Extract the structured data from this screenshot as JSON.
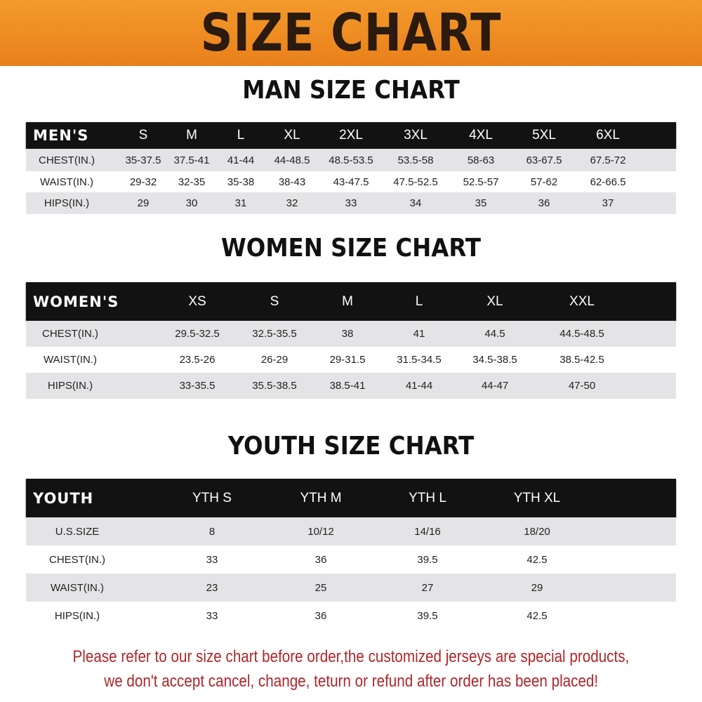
{
  "title": "SIZE CHART",
  "colors": {
    "banner": "#ef8a1f",
    "header_row": "#121212",
    "stripe": "#e4e4e6",
    "notice": "#b0262a"
  },
  "tables": [
    {
      "title": "MAN SIZE CHART",
      "header": [
        "MEN'S",
        "S",
        "M",
        "L",
        "XL",
        "2XL",
        "3XL",
        "4XL",
        "5XL",
        "6XL"
      ],
      "rows": [
        [
          "CHEST(IN.)",
          "35-37.5",
          "37.5-41",
          "41-44",
          "44-48.5",
          "48.5-53.5",
          "53.5-58",
          "58-63",
          "63-67.5",
          "67.5-72"
        ],
        [
          "WAIST(IN.)",
          "29-32",
          "32-35",
          "35-38",
          "38-43",
          "43-47.5",
          "47.5-52.5",
          "52.5-57",
          "57-62",
          "62-66.5"
        ],
        [
          "HIPS(IN.)",
          "29",
          "30",
          "31",
          "32",
          "33",
          "34",
          "35",
          "36",
          "37"
        ]
      ]
    },
    {
      "title": "WOMEN SIZE CHART",
      "header": [
        "WOMEN'S",
        "XS",
        "S",
        "M",
        "L",
        "XL",
        "XXL"
      ],
      "rows": [
        [
          "CHEST(IN.)",
          "29.5-32.5",
          "32.5-35.5",
          "38",
          "41",
          "44.5",
          "44.5-48.5"
        ],
        [
          "WAIST(IN.)",
          "23.5-26",
          "26-29",
          "29-31.5",
          "31.5-34.5",
          "34.5-38.5",
          "38.5-42.5"
        ],
        [
          "HIPS(IN.)",
          "33-35.5",
          "35.5-38.5",
          "38.5-41",
          "41-44",
          "44-47",
          "47-50"
        ]
      ]
    },
    {
      "title": "YOUTH SIZE CHART",
      "header": [
        "YOUTH",
        "YTH S",
        "YTH M",
        "YTH L",
        "YTH XL"
      ],
      "rows": [
        [
          "U.S.SIZE",
          "8",
          "10/12",
          "14/16",
          "18/20"
        ],
        [
          "CHEST(IN.)",
          "33",
          "36",
          "39.5",
          "42.5"
        ],
        [
          "WAIST(IN.)",
          "23",
          "25",
          "27",
          "29"
        ],
        [
          "HIPS(IN.)",
          "33",
          "36",
          "39.5",
          "42.5"
        ]
      ]
    }
  ],
  "notice": [
    "Please refer to our size chart before order,the customized jerseys are special products,",
    "we don't accept cancel, change, teturn or refund after order has been placed!"
  ]
}
